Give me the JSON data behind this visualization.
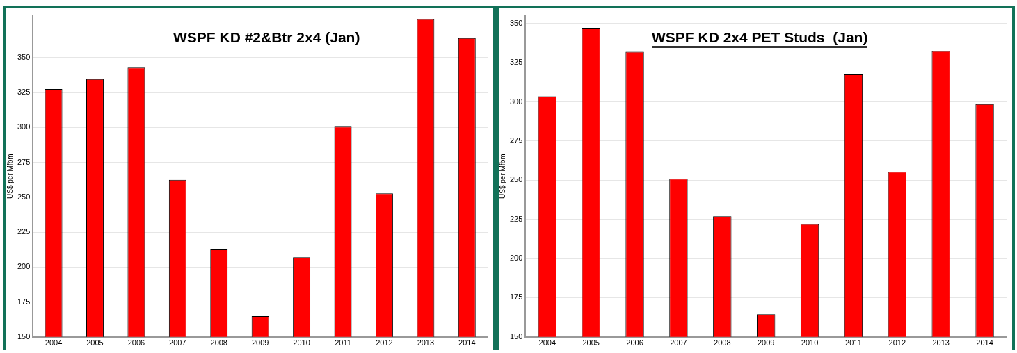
{
  "chart_data": [
    {
      "type": "bar",
      "title": "WSPF KD #2&Btr 2x4 (Jan)",
      "ylabel": "US$ per Mfbm",
      "categories": [
        "2004",
        "2005",
        "2006",
        "2007",
        "2008",
        "2009",
        "2010",
        "2011",
        "2012",
        "2013",
        "2014"
      ],
      "values": [
        327.6,
        334.7,
        342.9,
        262.5,
        212.6,
        164.8,
        207,
        300.6,
        252.8,
        377.5,
        364
      ],
      "color": "#ff0000",
      "ylim": [
        150,
        380
      ],
      "yticks": [
        150,
        175,
        200,
        225,
        250,
        275,
        300,
        325,
        350
      ],
      "grid": "y"
    },
    {
      "type": "bar",
      "title": "WSPF KD 2x4 PET Studs  (Jan)",
      "ylabel": "US$ per Mfbm",
      "categories": [
        "2004",
        "2005",
        "2006",
        "2007",
        "2008",
        "2009",
        "2010",
        "2011",
        "2012",
        "2013",
        "2014"
      ],
      "values": [
        303.6,
        346.8,
        332,
        250.9,
        227,
        164.4,
        222,
        317.6,
        255.4,
        332.4,
        298.6
      ],
      "color": "#ff0000",
      "ylim": [
        150,
        355
      ],
      "yticks": [
        150,
        175,
        200,
        225,
        250,
        275,
        300,
        325,
        350
      ],
      "grid": "y"
    }
  ]
}
